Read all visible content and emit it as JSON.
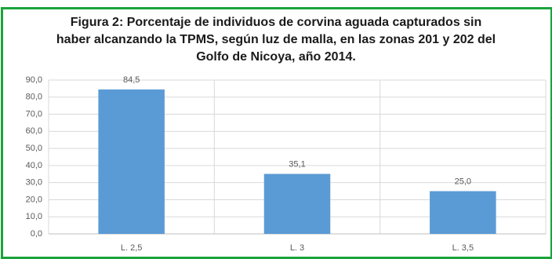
{
  "chart_data": {
    "type": "bar",
    "title": "Figura 2: Porcentaje de  individuos de corvina aguada capturados sin haber alcanzando la TPMS, según luz de malla, en las zonas 201 y 202 del Golfo de Nicoya, año 2014.",
    "categories": [
      "L. 2,5",
      "L. 3",
      "L. 3,5"
    ],
    "values": [
      84.5,
      35.1,
      25.0
    ],
    "value_labels": [
      "84,5",
      "35,1",
      "25,0"
    ],
    "color": "#5b9bd5",
    "ylim": [
      0,
      90
    ],
    "yticks": [
      {
        "value": 0,
        "label": "0,0"
      },
      {
        "value": 10,
        "label": "10,0"
      },
      {
        "value": 20,
        "label": "20,0"
      },
      {
        "value": 30,
        "label": "30,0"
      },
      {
        "value": 40,
        "label": "40,0"
      },
      {
        "value": 50,
        "label": "50,0"
      },
      {
        "value": 60,
        "label": "60,0"
      },
      {
        "value": 70,
        "label": "70,0"
      },
      {
        "value": 80,
        "label": "80,0"
      },
      {
        "value": 90,
        "label": "90,0"
      }
    ],
    "grid": true
  }
}
